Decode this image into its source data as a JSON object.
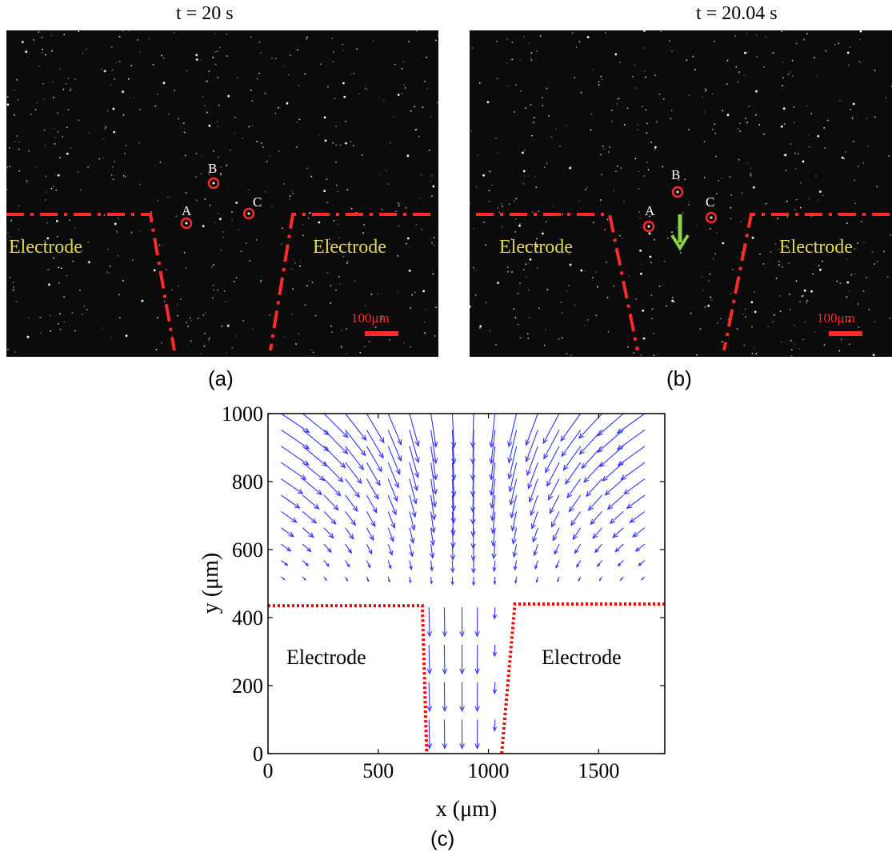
{
  "panels": {
    "a": {
      "time_label": "t = 20 s",
      "letter": "(a)",
      "electrode_left": "Electrode",
      "electrode_right": "Electrode",
      "scale_label": "100μm",
      "points": {
        "A": "A",
        "B": "B",
        "C": "C"
      }
    },
    "b": {
      "time_label": "t = 20.04 s",
      "letter": "(b)",
      "electrode_left": "Electrode",
      "electrode_right": "Electrode",
      "scale_label": "100μm",
      "points": {
        "A": "A",
        "B": "B",
        "C": "C"
      }
    },
    "c": {
      "letter": "(c)",
      "electrode_left": "Electrode",
      "electrode_right": "Electrode"
    }
  },
  "colors": {
    "boundary": "#ff2a2a",
    "electrode_text": "#e0d94a",
    "arrow_green": "#8bd14a",
    "vector": "#3333ff",
    "plot_boundary": "#ff0000"
  },
  "chart_data": {
    "type": "quiver",
    "xlabel": "x (μm)",
    "ylabel": "y (μm)",
    "xlim": [
      0,
      1800
    ],
    "ylim": [
      0,
      1000
    ],
    "xticks": [
      0,
      500,
      1000,
      1500
    ],
    "yticks": [
      0,
      200,
      400,
      600,
      800,
      1000
    ],
    "electrode_boundary": {
      "left": [
        [
          0,
          435
        ],
        [
          700,
          435
        ],
        [
          720,
          0
        ]
      ],
      "right": [
        [
          1800,
          440
        ],
        [
          1120,
          440
        ],
        [
          1060,
          0
        ]
      ]
    }
  }
}
